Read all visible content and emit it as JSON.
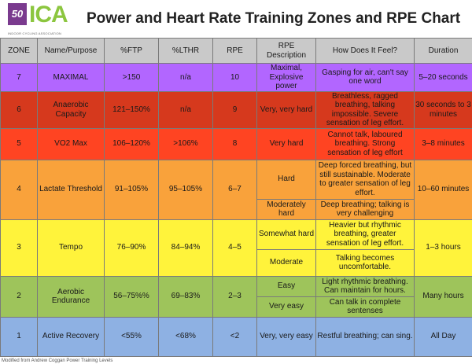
{
  "logo": {
    "mark": "50",
    "text": "ICA",
    "subtitle": "INDOOR CYCLING ASSOCIATION"
  },
  "title": "Power and Heart Rate Training Zones and RPE Chart",
  "columns": [
    "ZONE",
    "Name/Purpose",
    "%FTP",
    "%LTHR",
    "RPE",
    "RPE Description",
    "How Does It Feel?",
    "Duration"
  ],
  "colors": {
    "header": "#c9c9c9",
    "z7": "#b266ff",
    "z6": "#d6391d",
    "z5": "#ff4422",
    "z4": "#f9a23b",
    "z3": "#fff33b",
    "z2": "#9ec45b",
    "z1": "#8eb1e3"
  },
  "zones": {
    "z7": {
      "zone": "7",
      "name": "MAXIMAL",
      "ftp": ">150",
      "lthr": "n/a",
      "rpe": "10",
      "desc": "Maximal, Explosive power",
      "feel": "Gasping for air, can't say one word",
      "duration": "5–20 seconds"
    },
    "z6": {
      "zone": "6",
      "name": "Anaerobic Capacity",
      "ftp": "121–150%",
      "lthr": "n/a",
      "rpe": "9",
      "desc": "Very, very hard",
      "feel": "Breathless, ragged breathing, talking impossible. Severe sensation of leg effort.",
      "duration": "30 seconds to 3 minutes"
    },
    "z5": {
      "zone": "5",
      "name": "VO2 Max",
      "ftp": "106–120%",
      "lthr": ">106%",
      "rpe": "8",
      "desc": "Very hard",
      "feel": "Cannot talk, laboured breathing. Strong sensation of leg effort",
      "duration": "3–8 minutes"
    },
    "z4": {
      "zone": "4",
      "name": "Lactate Threshold",
      "ftp": "91–105%",
      "lthr": "95–105%",
      "rpe": "6–7",
      "desc": "Hard",
      "feel": "Deep forced breathing, but still sustainable. Moderate to greater sensation of leg effort.",
      "desc2": "Moderately hard",
      "feel2": "Deep breathing; talking is very challenging",
      "duration": "10–60 minutes"
    },
    "z3": {
      "zone": "3",
      "name": "Tempo",
      "ftp": "76–90%",
      "lthr": "84–94%",
      "rpe": "4–5",
      "desc": "Somewhat hard",
      "feel": "Heavier but rhythmic breathing, greater sensation of leg effort.",
      "desc2": "Moderate",
      "feel2": "Talking becomes uncomfortable.",
      "duration": "1–3 hours"
    },
    "z2": {
      "zone": "2",
      "name": "Aerobic Endurance",
      "ftp": "56–75%%",
      "lthr": "69–83%",
      "rpe": "2–3",
      "desc": "Easy",
      "feel": "Light rhythmic breathing. Can maintain for hours.",
      "desc2": "Very easy",
      "feel2": "Can talk in complete sentenses",
      "duration": "Many hours"
    },
    "z1": {
      "zone": "1",
      "name": "Active Recovery",
      "ftp": "<55%",
      "lthr": "<68%",
      "rpe": "<2",
      "desc": "Very, very easy",
      "feel": "Restful breathing; can sing.",
      "duration": "All Day"
    }
  },
  "footer": "Modified from Andrew Coggan Power Training Levels"
}
